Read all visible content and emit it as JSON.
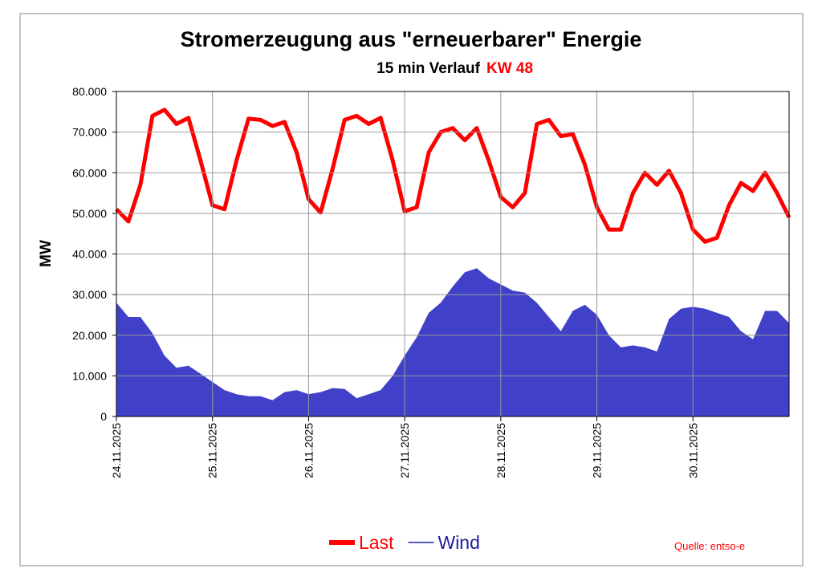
{
  "chart_data": {
    "type": "line",
    "title": "Stromerzeugung aus \"erneuerbarer\" Energie",
    "subtitle": "15 min Verlauf",
    "annotation": "KW 48",
    "source": "Quelle: entso-e",
    "ylabel": "MW",
    "categories": [
      "24.11.2025",
      null,
      null,
      null,
      null,
      null,
      null,
      null,
      "25.11.2025",
      null,
      null,
      null,
      null,
      null,
      null,
      null,
      "26.11.2025",
      null,
      null,
      null,
      null,
      null,
      null,
      null,
      "27.11.2025",
      null,
      null,
      null,
      null,
      null,
      null,
      null,
      "28.11.2025",
      null,
      null,
      null,
      null,
      null,
      null,
      null,
      "29.11.2025",
      null,
      null,
      null,
      null,
      null,
      null,
      null,
      "30.11.2025",
      null,
      null,
      null,
      null,
      null,
      null,
      null,
      null
    ],
    "series": [
      {
        "name": "Last",
        "color": "#ff0000",
        "style": "line",
        "values": [
          51000,
          48000,
          57000,
          74000,
          75500,
          72000,
          73500,
          63000,
          52000,
          51000,
          63000,
          73300,
          73000,
          71500,
          72500,
          65000,
          53500,
          50200,
          61000,
          73000,
          74000,
          72000,
          73500,
          63000,
          50500,
          51500,
          65000,
          70000,
          71000,
          68000,
          71000,
          63000,
          54000,
          51500,
          55000,
          72000,
          73000,
          69000,
          69500,
          62000,
          51500,
          46000,
          46000,
          55000,
          60000,
          57000,
          60500,
          55000,
          46000,
          43000,
          44000,
          52000,
          57500,
          55500,
          60000,
          55000,
          49000
        ]
      },
      {
        "name": "Wind",
        "color": "#4040c8",
        "style": "area",
        "values": [
          28000,
          24500,
          24500,
          20500,
          15000,
          12000,
          12500,
          10500,
          8500,
          6500,
          5500,
          5000,
          5000,
          4000,
          6000,
          6500,
          5500,
          6000,
          7000,
          6800,
          4500,
          5500,
          6500,
          10000,
          15000,
          19500,
          25500,
          28000,
          32000,
          35500,
          36500,
          34000,
          32500,
          31000,
          30500,
          28000,
          24500,
          21000,
          26000,
          27500,
          25000,
          20000,
          17000,
          17500,
          17000,
          16000,
          24000,
          26500,
          27000,
          26500,
          25500,
          24500,
          21000,
          19000,
          26000,
          26000,
          23000
        ]
      }
    ],
    "ylim": [
      0,
      80000
    ],
    "yticks": [
      0,
      {
        "value": 10000,
        "label": "10.000"
      },
      {
        "value": 20000,
        "label": "20.000"
      },
      {
        "value": 30000,
        "label": "30.000"
      },
      {
        "value": 40000,
        "label": "40.000"
      },
      {
        "value": 50000,
        "label": "50.000"
      },
      {
        "value": 60000,
        "label": "60.000"
      },
      {
        "value": 70000,
        "label": "70.000"
      },
      {
        "value": 80000,
        "label": "80.000"
      }
    ],
    "grid": true
  }
}
